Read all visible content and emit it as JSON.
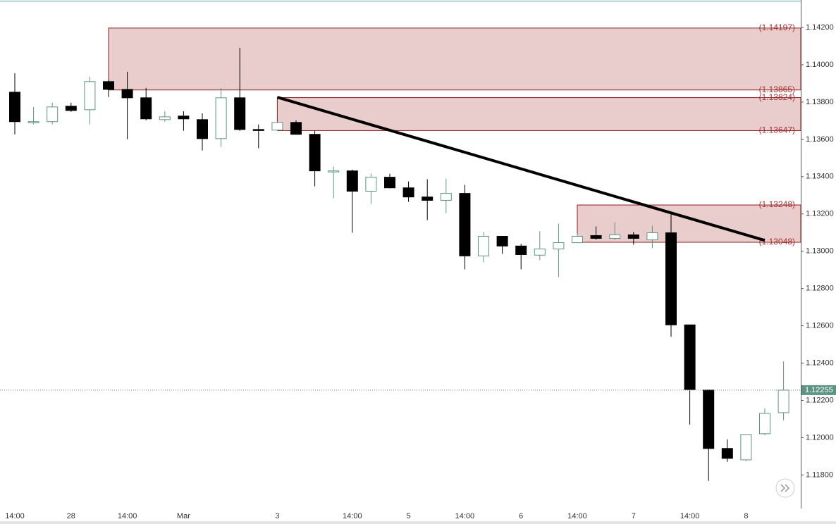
{
  "chart_data": {
    "type": "candlestick",
    "categories": [
      "14:00",
      null,
      null,
      "28",
      null,
      null,
      "14:00",
      null,
      null,
      "Mar",
      null,
      null,
      null,
      null,
      "3",
      null,
      null,
      null,
      "14:00",
      null,
      null,
      "5",
      null,
      null,
      "14:00",
      null,
      null,
      "6",
      null,
      null,
      "14:00",
      null,
      null,
      "7",
      null,
      null,
      "14:00",
      null,
      null,
      "8",
      null,
      null
    ],
    "open": [
      1.13853,
      1.13691,
      1.13695,
      1.13778,
      1.13759,
      1.1391,
      1.13868,
      1.13823,
      1.13706,
      1.13725,
      1.13706,
      1.13604,
      1.13823,
      1.13653,
      1.1365,
      1.13691,
      1.13627,
      1.13431,
      1.13431,
      1.13322,
      1.13397,
      1.1334,
      1.13291,
      1.13273,
      1.1331,
      1.12975,
      1.1308,
      1.13028,
      1.12979,
      1.13012,
      1.13046,
      1.13084,
      1.13069,
      1.13088,
      1.13061,
      1.13099,
      1.12605,
      1.12255,
      1.11942,
      1.11881,
      1.12021,
      1.12134
    ],
    "high": [
      1.13955,
      1.13774,
      1.13797,
      1.13797,
      1.13936,
      1.13921,
      1.13962,
      1.13876,
      1.13751,
      1.13751,
      1.1374,
      1.13876,
      1.14091,
      1.1368,
      1.13691,
      1.13702,
      1.13646,
      1.13454,
      1.13438,
      1.13416,
      1.13416,
      1.13374,
      1.13386,
      1.13389,
      1.13356,
      1.13103,
      1.1308,
      1.13039,
      1.13107,
      1.13148,
      1.13095,
      1.13133,
      1.13156,
      1.13103,
      1.13137,
      1.13212,
      1.12605,
      1.12258,
      1.11991,
      1.12017,
      1.12157,
      1.12409
    ],
    "low": [
      1.13627,
      1.1368,
      1.1368,
      1.13748,
      1.1368,
      1.13827,
      1.13601,
      1.13702,
      1.13695,
      1.13646,
      1.1354,
      1.13559,
      1.13646,
      1.13552,
      1.13646,
      1.13627,
      1.13348,
      1.13284,
      1.13099,
      1.13254,
      1.13337,
      1.13265,
      1.13167,
      1.13205,
      1.12903,
      1.12941,
      1.12986,
      1.12903,
      1.12952,
      1.12862,
      1.13043,
      1.13061,
      1.13061,
      1.13035,
      1.13016,
      1.12541,
      1.1207,
      1.11768,
      1.1187,
      1.11874,
      1.12013,
      1.12093
    ],
    "close": [
      1.13695,
      1.13695,
      1.13774,
      1.13755,
      1.1391,
      1.13868,
      1.13823,
      1.1371,
      1.13721,
      1.1371,
      1.13604,
      1.13823,
      1.13653,
      1.1365,
      1.13691,
      1.13627,
      1.13431,
      1.13431,
      1.13322,
      1.13397,
      1.1334,
      1.13291,
      1.13273,
      1.1331,
      1.12975,
      1.1308,
      1.13028,
      1.12982,
      1.13012,
      1.13046,
      1.1308,
      1.13069,
      1.13088,
      1.13069,
      1.13099,
      1.12605,
      1.12258,
      1.11942,
      1.11889,
      1.12017,
      1.1213,
      1.12255
    ],
    "up_color": "#ffffff",
    "up_border": "#5d9585",
    "down_color": "#000000",
    "ylim": [
      1.1162,
      1.1434
    ],
    "yticks": [
      {
        "value": 1.118,
        "label": "1.11800"
      },
      {
        "value": 1.12,
        "label": "1.12000"
      },
      {
        "value": 1.122,
        "label": "1.12200"
      },
      {
        "value": 1.124,
        "label": "1.12400"
      },
      {
        "value": 1.126,
        "label": "1.12600"
      },
      {
        "value": 1.128,
        "label": "1.12800"
      },
      {
        "value": 1.13,
        "label": "1.13000"
      },
      {
        "value": 1.132,
        "label": "1.13200"
      },
      {
        "value": 1.134,
        "label": "1.13400"
      },
      {
        "value": 1.136,
        "label": "1.13600"
      },
      {
        "value": 1.138,
        "label": "1.13800"
      },
      {
        "value": 1.14,
        "label": "1.14000"
      },
      {
        "value": 1.142,
        "label": "1.14200"
      }
    ],
    "zones": [
      {
        "x_start": 5,
        "top": {
          "value": 1.14197,
          "label": "(1.14197)"
        },
        "bottom": {
          "value": 1.13865,
          "label": "(1.13865)"
        }
      },
      {
        "x_start": 14,
        "top": {
          "value": 1.13824,
          "label": "(1.13824)"
        },
        "bottom": {
          "value": 1.13647,
          "label": "(1.13647)"
        }
      },
      {
        "x_start": 30,
        "top": {
          "value": 1.13248,
          "label": "(1.13248)"
        },
        "bottom": {
          "value": 1.13048,
          "label": "(1.13048)"
        }
      }
    ],
    "zone_color": "#e8c9c9",
    "zone_border": "#8c1c1c",
    "trendline": {
      "x": [
        14,
        40
      ],
      "values": [
        1.13826,
        1.13058
      ]
    },
    "last_price": 1.12255,
    "last_price_color": "#5d9585"
  }
}
